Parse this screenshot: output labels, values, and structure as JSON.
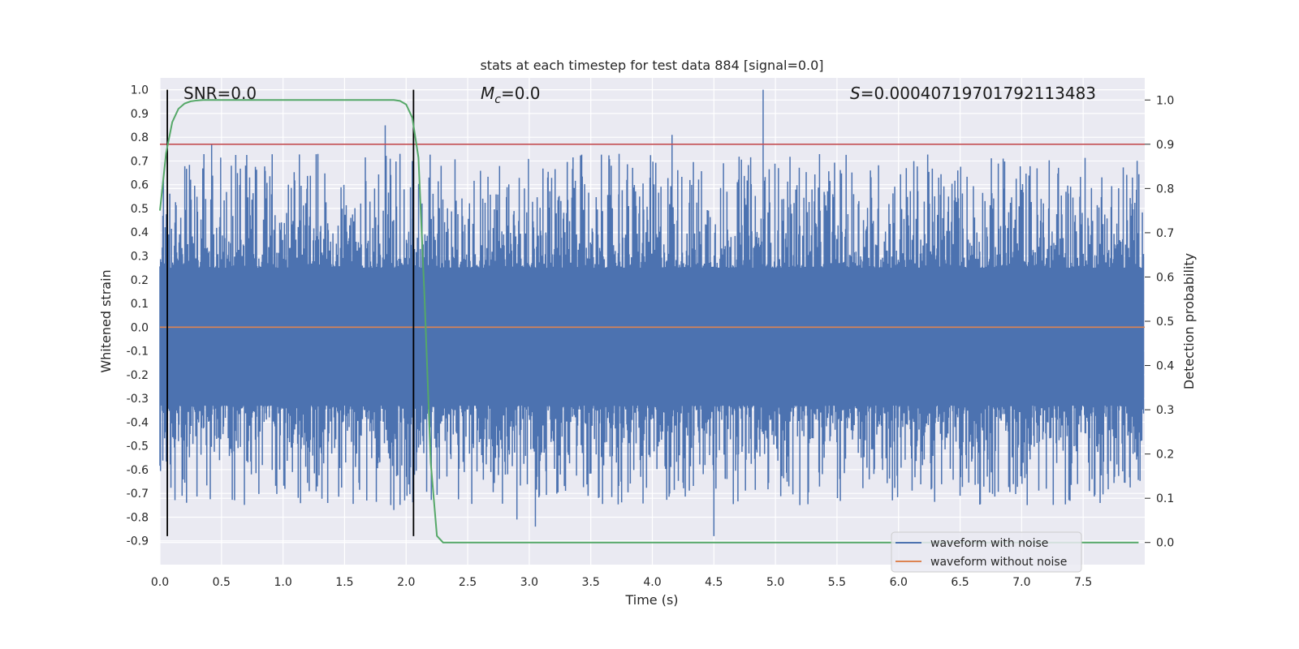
{
  "chart_data": {
    "type": "line",
    "title": "stats at each timestep for test data 884 [signal=0.0]",
    "xlabel": "Time (s)",
    "ylabel": "Whitened strain",
    "ylabel_right": "Detection probability",
    "xlim": [
      0.0,
      8.0
    ],
    "ylim": [
      -1.0,
      1.05
    ],
    "ylim_right": [
      -0.05,
      1.05
    ],
    "x_ticks": [
      "0.0",
      "0.5",
      "1.0",
      "1.5",
      "2.0",
      "2.5",
      "3.0",
      "3.5",
      "4.0",
      "4.5",
      "5.0",
      "5.5",
      "6.0",
      "6.5",
      "7.0",
      "7.5"
    ],
    "y_ticks": [
      "1.0",
      "0.9",
      "0.8",
      "0.7",
      "0.6",
      "0.5",
      "0.4",
      "0.3",
      "0.2",
      "0.1",
      "0.0",
      "-0.1",
      "-0.2",
      "-0.3",
      "-0.4",
      "-0.5",
      "-0.6",
      "-0.7",
      "-0.8",
      "-0.9"
    ],
    "y_ticks_right": [
      "1.0",
      "0.9",
      "0.8",
      "0.7",
      "0.6",
      "0.5",
      "0.4",
      "0.3",
      "0.2",
      "0.1",
      "0.0"
    ],
    "grid": true,
    "legend_position": "lower-right",
    "annotations": {
      "snr": "SNR=0.0",
      "mc_symbol": "M",
      "mc_sub": "c",
      "mc_value": "=0.0",
      "s_symbol": "S",
      "s_value": "=0.00040719701792113483"
    },
    "series": [
      {
        "name": "waveform with noise",
        "color": "#4c72b0",
        "noise_envelope": [
          -0.33,
          0.25
        ],
        "peaks": [
          {
            "x": 0.42,
            "y": 0.77
          },
          {
            "x": 0.58,
            "y": 0.68
          },
          {
            "x": 1.83,
            "y": 0.85
          },
          {
            "x": 1.95,
            "y": 0.73
          },
          {
            "x": 2.05,
            "y": 0.7
          },
          {
            "x": 3.15,
            "y": 0.63
          },
          {
            "x": 3.73,
            "y": 0.73
          },
          {
            "x": 4.16,
            "y": 0.81
          },
          {
            "x": 4.9,
            "y": 1.0
          },
          {
            "x": 6.85,
            "y": 0.71
          },
          {
            "x": 7.9,
            "y": 0.63
          },
          {
            "x": 0.06,
            "y": -0.72
          },
          {
            "x": 0.18,
            "y": -0.71
          },
          {
            "x": 1.68,
            "y": -0.73
          },
          {
            "x": 1.9,
            "y": -0.77
          },
          {
            "x": 2.9,
            "y": -0.81
          },
          {
            "x": 3.05,
            "y": -0.84
          },
          {
            "x": 4.5,
            "y": -0.88
          },
          {
            "x": 6.5,
            "y": -0.71
          },
          {
            "x": 7.55,
            "y": -0.69
          }
        ]
      },
      {
        "name": "waveform without noise",
        "color": "#dd8452",
        "y_constant": 0.0
      },
      {
        "name": "",
        "color": "#55a868",
        "axis": "right",
        "x": [
          0.0,
          0.05,
          0.1,
          0.15,
          0.2,
          0.25,
          0.3,
          0.35,
          0.4,
          0.5,
          0.75,
          1.0,
          1.25,
          1.5,
          1.75,
          1.9,
          1.95,
          2.0,
          2.05,
          2.1,
          2.15,
          2.2,
          2.25,
          2.3,
          2.35,
          2.5,
          3.0,
          4.0,
          5.0,
          6.0,
          7.0,
          7.95
        ],
        "y": [
          0.75,
          0.88,
          0.95,
          0.98,
          0.992,
          0.997,
          0.999,
          1.0,
          1.0,
          1.0,
          1.0,
          1.0,
          1.0,
          1.0,
          1.0,
          1.0,
          0.998,
          0.99,
          0.96,
          0.87,
          0.55,
          0.18,
          0.015,
          0.0,
          0.0,
          0.0,
          0.0,
          0.0,
          0.0,
          0.0,
          0.0,
          0.0
        ]
      }
    ],
    "threshold": {
      "value": 0.9,
      "color": "#c44e52",
      "axis": "right"
    },
    "vlines": [
      0.06,
      2.06
    ]
  }
}
